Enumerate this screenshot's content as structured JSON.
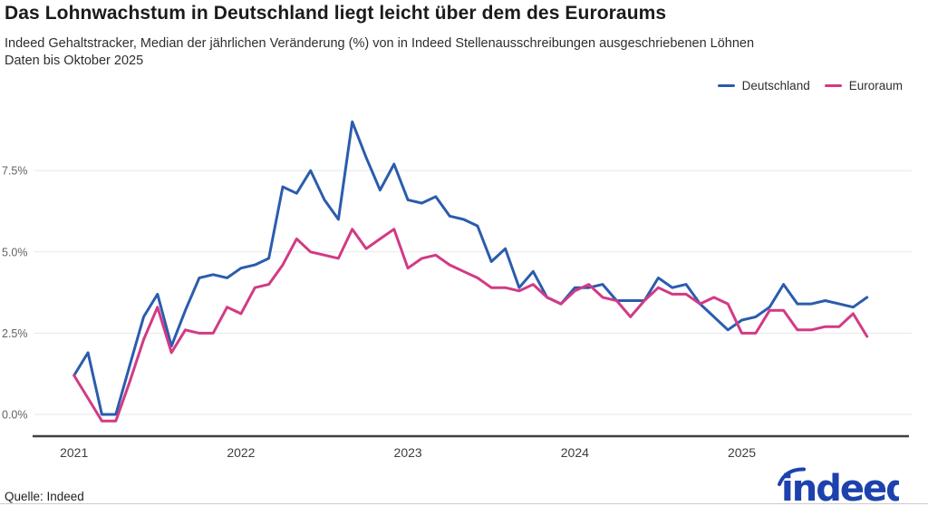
{
  "header": {
    "title": "Das Lohnwachstum in Deutschland liegt leicht über dem des Euroraums",
    "subtitle_line1": "Indeed Gehaltstracker, Median der jährlichen Veränderung (%) von in Indeed Stellenausschreibungen ausgeschriebenen Löhnen",
    "subtitle_line2": "Daten bis Oktober 2025"
  },
  "legend": {
    "items": [
      {
        "label": "Deutschland",
        "color": "#2b5cad"
      },
      {
        "label": "Euroraum",
        "color": "#d23a85"
      }
    ]
  },
  "footer": {
    "source": "Quelle: Indeed",
    "logo_text": "indeed",
    "logo_color": "#1e42ad"
  },
  "chart_data": {
    "type": "line",
    "title": "Das Lohnwachstum in Deutschland liegt leicht über dem des Euroraums",
    "xlabel": "",
    "ylabel": "Median der jährlichen Veränderung (%)",
    "grid": true,
    "legend_position": "top-right",
    "ylim": [
      -0.7,
      9.7
    ],
    "y_tick_values": [
      0,
      2.5,
      5,
      7.5
    ],
    "y_tick_labels": [
      "0.0%",
      "2.5%",
      "5.0%",
      "7.5%"
    ],
    "x_tick_labels": [
      "2021",
      "2022",
      "2023",
      "2024",
      "2025"
    ],
    "x": [
      "2021-01",
      "2021-02",
      "2021-03",
      "2021-04",
      "2021-05",
      "2021-06",
      "2021-07",
      "2021-08",
      "2021-09",
      "2021-10",
      "2021-11",
      "2021-12",
      "2022-01",
      "2022-02",
      "2022-03",
      "2022-04",
      "2022-05",
      "2022-06",
      "2022-07",
      "2022-08",
      "2022-09",
      "2022-10",
      "2022-11",
      "2022-12",
      "2023-01",
      "2023-02",
      "2023-03",
      "2023-04",
      "2023-05",
      "2023-06",
      "2023-07",
      "2023-08",
      "2023-09",
      "2023-10",
      "2023-11",
      "2023-12",
      "2024-01",
      "2024-02",
      "2024-03",
      "2024-04",
      "2024-05",
      "2024-06",
      "2024-07",
      "2024-08",
      "2024-09",
      "2024-10",
      "2024-11",
      "2024-12",
      "2025-01",
      "2025-02",
      "2025-03",
      "2025-04",
      "2025-05",
      "2025-06",
      "2025-07",
      "2025-08",
      "2025-09",
      "2025-10"
    ],
    "series": [
      {
        "name": "Deutschland",
        "color": "#2b5cad",
        "values": [
          1.2,
          1.9,
          0.0,
          0.0,
          1.5,
          3.0,
          3.7,
          2.1,
          3.2,
          4.2,
          4.3,
          4.2,
          4.5,
          4.6,
          4.8,
          7.0,
          6.8,
          7.5,
          6.6,
          6.0,
          9.0,
          7.9,
          6.9,
          7.7,
          6.6,
          6.5,
          6.7,
          6.1,
          6.0,
          5.8,
          4.7,
          5.1,
          3.9,
          4.4,
          3.6,
          3.4,
          3.9,
          3.9,
          4.0,
          3.5,
          3.5,
          3.5,
          4.2,
          3.9,
          4.0,
          3.4,
          3.0,
          2.6,
          2.9,
          3.0,
          3.3,
          4.0,
          3.4,
          3.4,
          3.5,
          3.4,
          3.3,
          3.6
        ]
      },
      {
        "name": "Euroraum",
        "color": "#d23a85",
        "values": [
          1.2,
          0.5,
          -0.2,
          -0.2,
          1.0,
          2.3,
          3.3,
          1.9,
          2.6,
          2.5,
          2.5,
          3.3,
          3.1,
          3.9,
          4.0,
          4.6,
          5.4,
          5.0,
          4.9,
          4.8,
          5.7,
          5.1,
          5.4,
          5.7,
          4.5,
          4.8,
          4.9,
          4.6,
          4.4,
          4.2,
          3.9,
          3.9,
          3.8,
          4.0,
          3.6,
          3.4,
          3.8,
          4.0,
          3.6,
          3.5,
          3.0,
          3.5,
          3.9,
          3.7,
          3.7,
          3.4,
          3.6,
          3.4,
          2.5,
          2.5,
          3.2,
          3.2,
          2.6,
          2.6,
          2.7,
          2.7,
          3.1,
          2.4
        ]
      }
    ]
  }
}
